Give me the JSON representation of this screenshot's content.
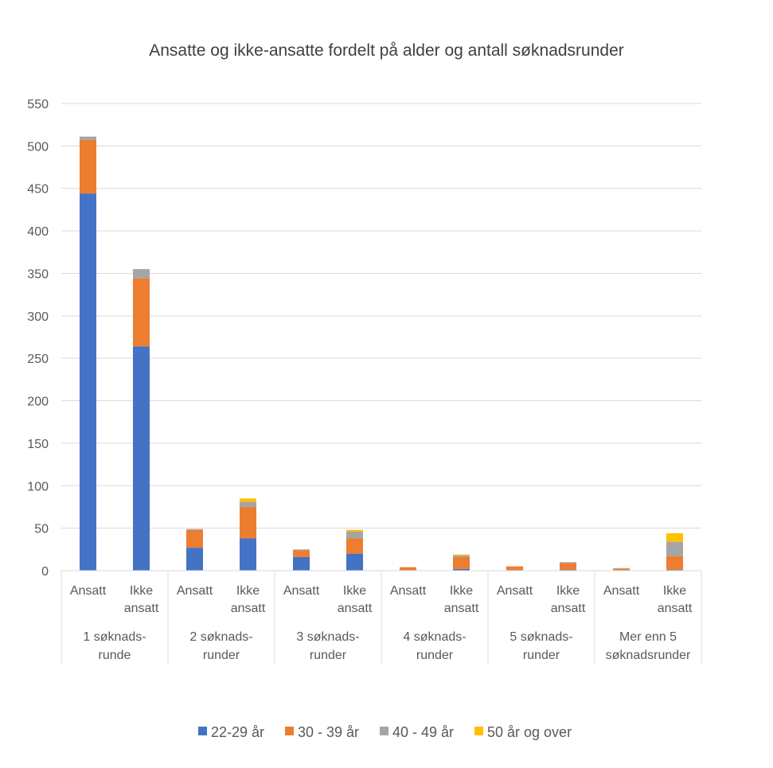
{
  "chart_data": {
    "type": "bar",
    "stacked": true,
    "title": "Ansatte og ikke-ansatte fordelt på alder og antall søknadsrunder",
    "xlabel": "",
    "ylabel": "",
    "ylim": [
      0,
      550
    ],
    "yticks": [
      0,
      50,
      100,
      150,
      200,
      250,
      300,
      350,
      400,
      450,
      500,
      550
    ],
    "grid": true,
    "legend_position": "bottom",
    "groups": [
      {
        "label": [
          "1 søknads-",
          "runde"
        ],
        "categories": [
          [
            "Ansatt"
          ],
          [
            "Ikke",
            "ansatt"
          ]
        ]
      },
      {
        "label": [
          "2 søknads-",
          "runder"
        ],
        "categories": [
          [
            "Ansatt"
          ],
          [
            "Ikke",
            "ansatt"
          ]
        ]
      },
      {
        "label": [
          "3 søknads-",
          "runder"
        ],
        "categories": [
          [
            "Ansatt"
          ],
          [
            "Ikke",
            "ansatt"
          ]
        ]
      },
      {
        "label": [
          "4 søknads-",
          "runder"
        ],
        "categories": [
          [
            "Ansatt"
          ],
          [
            "Ikke",
            "ansatt"
          ]
        ]
      },
      {
        "label": [
          "5 søknads-",
          "runder"
        ],
        "categories": [
          [
            "Ansatt"
          ],
          [
            "Ikke",
            "ansatt"
          ]
        ]
      },
      {
        "label": [
          "Mer enn 5",
          "søknadsrunder"
        ],
        "categories": [
          [
            "Ansatt"
          ],
          [
            "Ikke",
            "ansatt"
          ]
        ]
      }
    ],
    "series": [
      {
        "name": "22-29 år",
        "color": "#4472C4",
        "values": [
          444,
          264,
          27,
          38,
          16,
          20,
          0,
          2,
          0,
          1,
          0,
          1
        ]
      },
      {
        "name": "30 - 39 år",
        "color": "#ED7D31",
        "values": [
          63,
          80,
          21,
          37,
          8,
          18,
          4,
          14,
          5,
          8,
          2,
          16
        ]
      },
      {
        "name": "40 - 49 år",
        "color": "#A5A5A5",
        "values": [
          4,
          11,
          1,
          6,
          1,
          8,
          0,
          2,
          0,
          1,
          1,
          17
        ]
      },
      {
        "name": "50 år og over",
        "color": "#FFC000",
        "values": [
          0,
          0,
          0,
          4,
          0,
          2,
          0,
          1,
          0,
          0,
          0,
          10
        ]
      }
    ]
  }
}
